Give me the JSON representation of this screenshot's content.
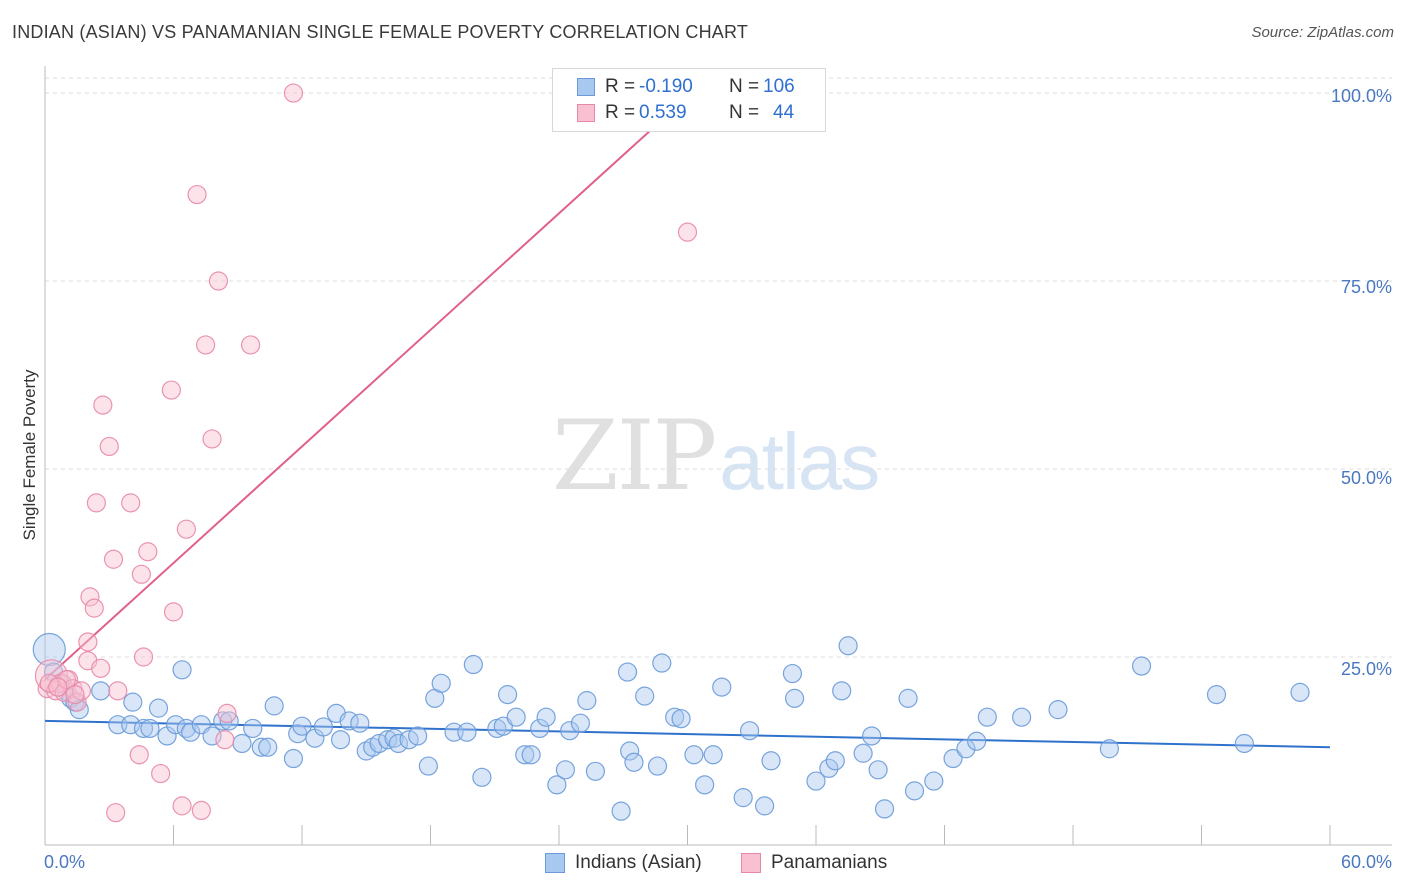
{
  "title": "INDIAN (ASIAN) VS PANAMANIAN SINGLE FEMALE POVERTY CORRELATION CHART",
  "source": "Source: ZipAtlas.com",
  "watermark": {
    "zip": "ZIP",
    "atlas": "atlas"
  },
  "legend_top": {
    "rows": [
      {
        "r_label": "R =",
        "r_value": "-0.190",
        "n_label": "N =",
        "n_value": "106",
        "fill": "#a8c8f0",
        "stroke": "#6a9ad8"
      },
      {
        "r_label": "R =",
        "r_value": "0.539",
        "n_label": "N =",
        "n_value": "44",
        "fill": "#f8c0d0",
        "stroke": "#e888a8"
      }
    ]
  },
  "legend_bottom": [
    {
      "label": "Indians (Asian)",
      "fill": "#a8c8f0",
      "stroke": "#6a9ad8"
    },
    {
      "label": "Panamanians",
      "fill": "#f8c0d0",
      "stroke": "#e888a8"
    }
  ],
  "chart_data": {
    "type": "scatter",
    "title": "INDIAN (ASIAN) VS PANAMANIAN SINGLE FEMALE POVERTY CORRELATION CHART",
    "xlabel": "",
    "ylabel": "Single Female Poverty",
    "xlim": [
      0,
      60
    ],
    "ylim": [
      0,
      102
    ],
    "x_tick_labels": [
      {
        "value": 0,
        "label": "0.0%"
      },
      {
        "value": 60,
        "label": "60.0%"
      }
    ],
    "y_tick_labels": [
      {
        "value": 25,
        "label": "25.0%"
      },
      {
        "value": 50,
        "label": "50.0%"
      },
      {
        "value": 75,
        "label": "75.0%"
      },
      {
        "value": 100,
        "label": "100.0%"
      }
    ],
    "grid": true,
    "legend_position": "top-center",
    "series": [
      {
        "name": "Indians (Asian)",
        "color": "#6a9ad8",
        "fill": "#a8c8f0",
        "trend": {
          "x": [
            0,
            60
          ],
          "y": [
            16.5,
            13.0
          ]
        },
        "points": [
          [
            0.2,
            26.0,
            1
          ],
          [
            0.4,
            23.0,
            0
          ],
          [
            0.8,
            21.5,
            0
          ],
          [
            1.0,
            20.5,
            0
          ],
          [
            1.2,
            19.5,
            0
          ],
          [
            1.4,
            19.0,
            0
          ],
          [
            1.6,
            18.0,
            0
          ],
          [
            2.6,
            20.5,
            0
          ],
          [
            3.4,
            16.0,
            0
          ],
          [
            4.0,
            16.0,
            0
          ],
          [
            4.1,
            19.0,
            0
          ],
          [
            4.6,
            15.5,
            0
          ],
          [
            4.9,
            15.5,
            0
          ],
          [
            5.3,
            18.2,
            0
          ],
          [
            5.7,
            14.5,
            0
          ],
          [
            6.1,
            16.0,
            0
          ],
          [
            6.4,
            23.3,
            0
          ],
          [
            6.6,
            15.5,
            0
          ],
          [
            6.8,
            15.0,
            0
          ],
          [
            7.3,
            16.0,
            0
          ],
          [
            7.8,
            14.5,
            0
          ],
          [
            8.3,
            16.5,
            0
          ],
          [
            8.6,
            16.5,
            0
          ],
          [
            9.2,
            13.5,
            0
          ],
          [
            9.7,
            15.5,
            0
          ],
          [
            10.1,
            13.0,
            0
          ],
          [
            10.4,
            13.0,
            0
          ],
          [
            10.7,
            18.5,
            0
          ],
          [
            11.6,
            11.5,
            0
          ],
          [
            11.8,
            14.8,
            0
          ],
          [
            12.0,
            15.8,
            0
          ],
          [
            12.6,
            14.2,
            0
          ],
          [
            13.0,
            15.7,
            0
          ],
          [
            13.6,
            17.5,
            0
          ],
          [
            13.8,
            14.0,
            0
          ],
          [
            14.2,
            16.5,
            0
          ],
          [
            14.7,
            16.2,
            0
          ],
          [
            15.0,
            12.5,
            0
          ],
          [
            15.3,
            13.0,
            0
          ],
          [
            15.6,
            13.5,
            0
          ],
          [
            16.0,
            14.0,
            0
          ],
          [
            16.3,
            14.2,
            0
          ],
          [
            16.5,
            13.5,
            0
          ],
          [
            17.0,
            14.0,
            0
          ],
          [
            17.4,
            14.5,
            0
          ],
          [
            17.9,
            10.5,
            0
          ],
          [
            18.2,
            19.5,
            0
          ],
          [
            18.5,
            21.5,
            0
          ],
          [
            19.1,
            15.0,
            0
          ],
          [
            19.7,
            15.0,
            0
          ],
          [
            20.0,
            24.0,
            0
          ],
          [
            20.4,
            9.0,
            0
          ],
          [
            21.1,
            15.5,
            0
          ],
          [
            21.4,
            15.8,
            0
          ],
          [
            21.6,
            20.0,
            0
          ],
          [
            22.0,
            17.0,
            0
          ],
          [
            22.4,
            12.0,
            0
          ],
          [
            22.7,
            12.0,
            0
          ],
          [
            23.1,
            15.5,
            0
          ],
          [
            23.4,
            17.0,
            0
          ],
          [
            23.9,
            8.0,
            0
          ],
          [
            24.3,
            10.0,
            0
          ],
          [
            24.5,
            15.2,
            0
          ],
          [
            25.0,
            16.2,
            0
          ],
          [
            25.3,
            19.2,
            0
          ],
          [
            25.7,
            9.8,
            0
          ],
          [
            26.9,
            4.5,
            0
          ],
          [
            27.2,
            23.0,
            0
          ],
          [
            27.3,
            12.5,
            0
          ],
          [
            27.5,
            11.0,
            0
          ],
          [
            28.0,
            19.8,
            0
          ],
          [
            28.6,
            10.5,
            0
          ],
          [
            28.8,
            24.2,
            0
          ],
          [
            29.4,
            17.0,
            0
          ],
          [
            29.7,
            16.8,
            0
          ],
          [
            30.3,
            12.0,
            0
          ],
          [
            30.8,
            8.0,
            0
          ],
          [
            31.2,
            12.0,
            0
          ],
          [
            31.6,
            21.0,
            0
          ],
          [
            32.6,
            6.3,
            0
          ],
          [
            32.9,
            15.2,
            0
          ],
          [
            33.6,
            5.2,
            0
          ],
          [
            33.9,
            11.2,
            0
          ],
          [
            34.9,
            22.8,
            0
          ],
          [
            35.0,
            19.5,
            0
          ],
          [
            36.0,
            8.5,
            0
          ],
          [
            36.6,
            10.2,
            0
          ],
          [
            36.9,
            11.2,
            0
          ],
          [
            37.2,
            20.5,
            0
          ],
          [
            37.5,
            26.5,
            0
          ],
          [
            38.2,
            12.2,
            0
          ],
          [
            38.6,
            14.5,
            0
          ],
          [
            38.9,
            10.0,
            0
          ],
          [
            39.2,
            4.8,
            0
          ],
          [
            40.3,
            19.5,
            0
          ],
          [
            40.6,
            7.2,
            0
          ],
          [
            41.5,
            8.5,
            0
          ],
          [
            42.4,
            11.5,
            0
          ],
          [
            43.0,
            12.8,
            0
          ],
          [
            43.5,
            13.8,
            0
          ],
          [
            44.0,
            17.0,
            0
          ],
          [
            45.6,
            17.0,
            0
          ],
          [
            47.3,
            18.0,
            0
          ],
          [
            49.7,
            12.8,
            0
          ],
          [
            51.2,
            23.8,
            0
          ],
          [
            54.7,
            20.0,
            0
          ],
          [
            56.0,
            13.5,
            0
          ],
          [
            58.6,
            20.3,
            0
          ]
        ]
      },
      {
        "name": "Panamanians",
        "color": "#e888a8",
        "fill": "#f8c0d0",
        "trend": {
          "x": [
            0,
            30
          ],
          "y": [
            22.0,
            99.5
          ]
        },
        "points": [
          [
            0.1,
            20.8,
            0
          ],
          [
            0.3,
            22.5,
            1
          ],
          [
            0.5,
            20.5,
            0
          ],
          [
            0.7,
            21.5,
            0
          ],
          [
            0.9,
            20.3,
            0
          ],
          [
            1.1,
            22.0,
            0
          ],
          [
            1.3,
            20.8,
            0
          ],
          [
            1.5,
            19.0,
            0
          ],
          [
            1.7,
            20.5,
            0
          ],
          [
            2.0,
            27.0,
            0
          ],
          [
            2.0,
            24.5,
            0
          ],
          [
            2.1,
            33.0,
            0
          ],
          [
            2.3,
            31.5,
            0
          ],
          [
            2.4,
            45.5,
            0
          ],
          [
            2.6,
            23.5,
            0
          ],
          [
            2.7,
            58.5,
            0
          ],
          [
            3.0,
            53.0,
            0
          ],
          [
            3.2,
            38.0,
            0
          ],
          [
            3.4,
            20.5,
            0
          ],
          [
            3.3,
            4.3,
            0
          ],
          [
            4.0,
            45.5,
            0
          ],
          [
            4.4,
            12.0,
            0
          ],
          [
            4.5,
            36.0,
            0
          ],
          [
            4.6,
            25.0,
            0
          ],
          [
            4.8,
            39.0,
            0
          ],
          [
            5.4,
            9.5,
            0
          ],
          [
            5.9,
            60.5,
            0
          ],
          [
            6.0,
            31.0,
            0
          ],
          [
            6.4,
            5.2,
            0
          ],
          [
            6.6,
            42.0,
            0
          ],
          [
            7.1,
            86.5,
            0
          ],
          [
            7.3,
            4.6,
            0
          ],
          [
            7.5,
            66.5,
            0
          ],
          [
            7.8,
            54.0,
            0
          ],
          [
            8.1,
            75.0,
            0
          ],
          [
            8.5,
            17.5,
            0
          ],
          [
            9.6,
            66.5,
            0
          ],
          [
            11.6,
            100.0,
            0
          ],
          [
            30.0,
            81.5,
            0
          ],
          [
            1.0,
            22.0,
            0
          ],
          [
            0.2,
            21.5,
            0
          ],
          [
            1.4,
            20.0,
            0
          ],
          [
            0.6,
            21.0,
            0
          ],
          [
            8.4,
            14.0,
            0
          ]
        ]
      }
    ]
  }
}
